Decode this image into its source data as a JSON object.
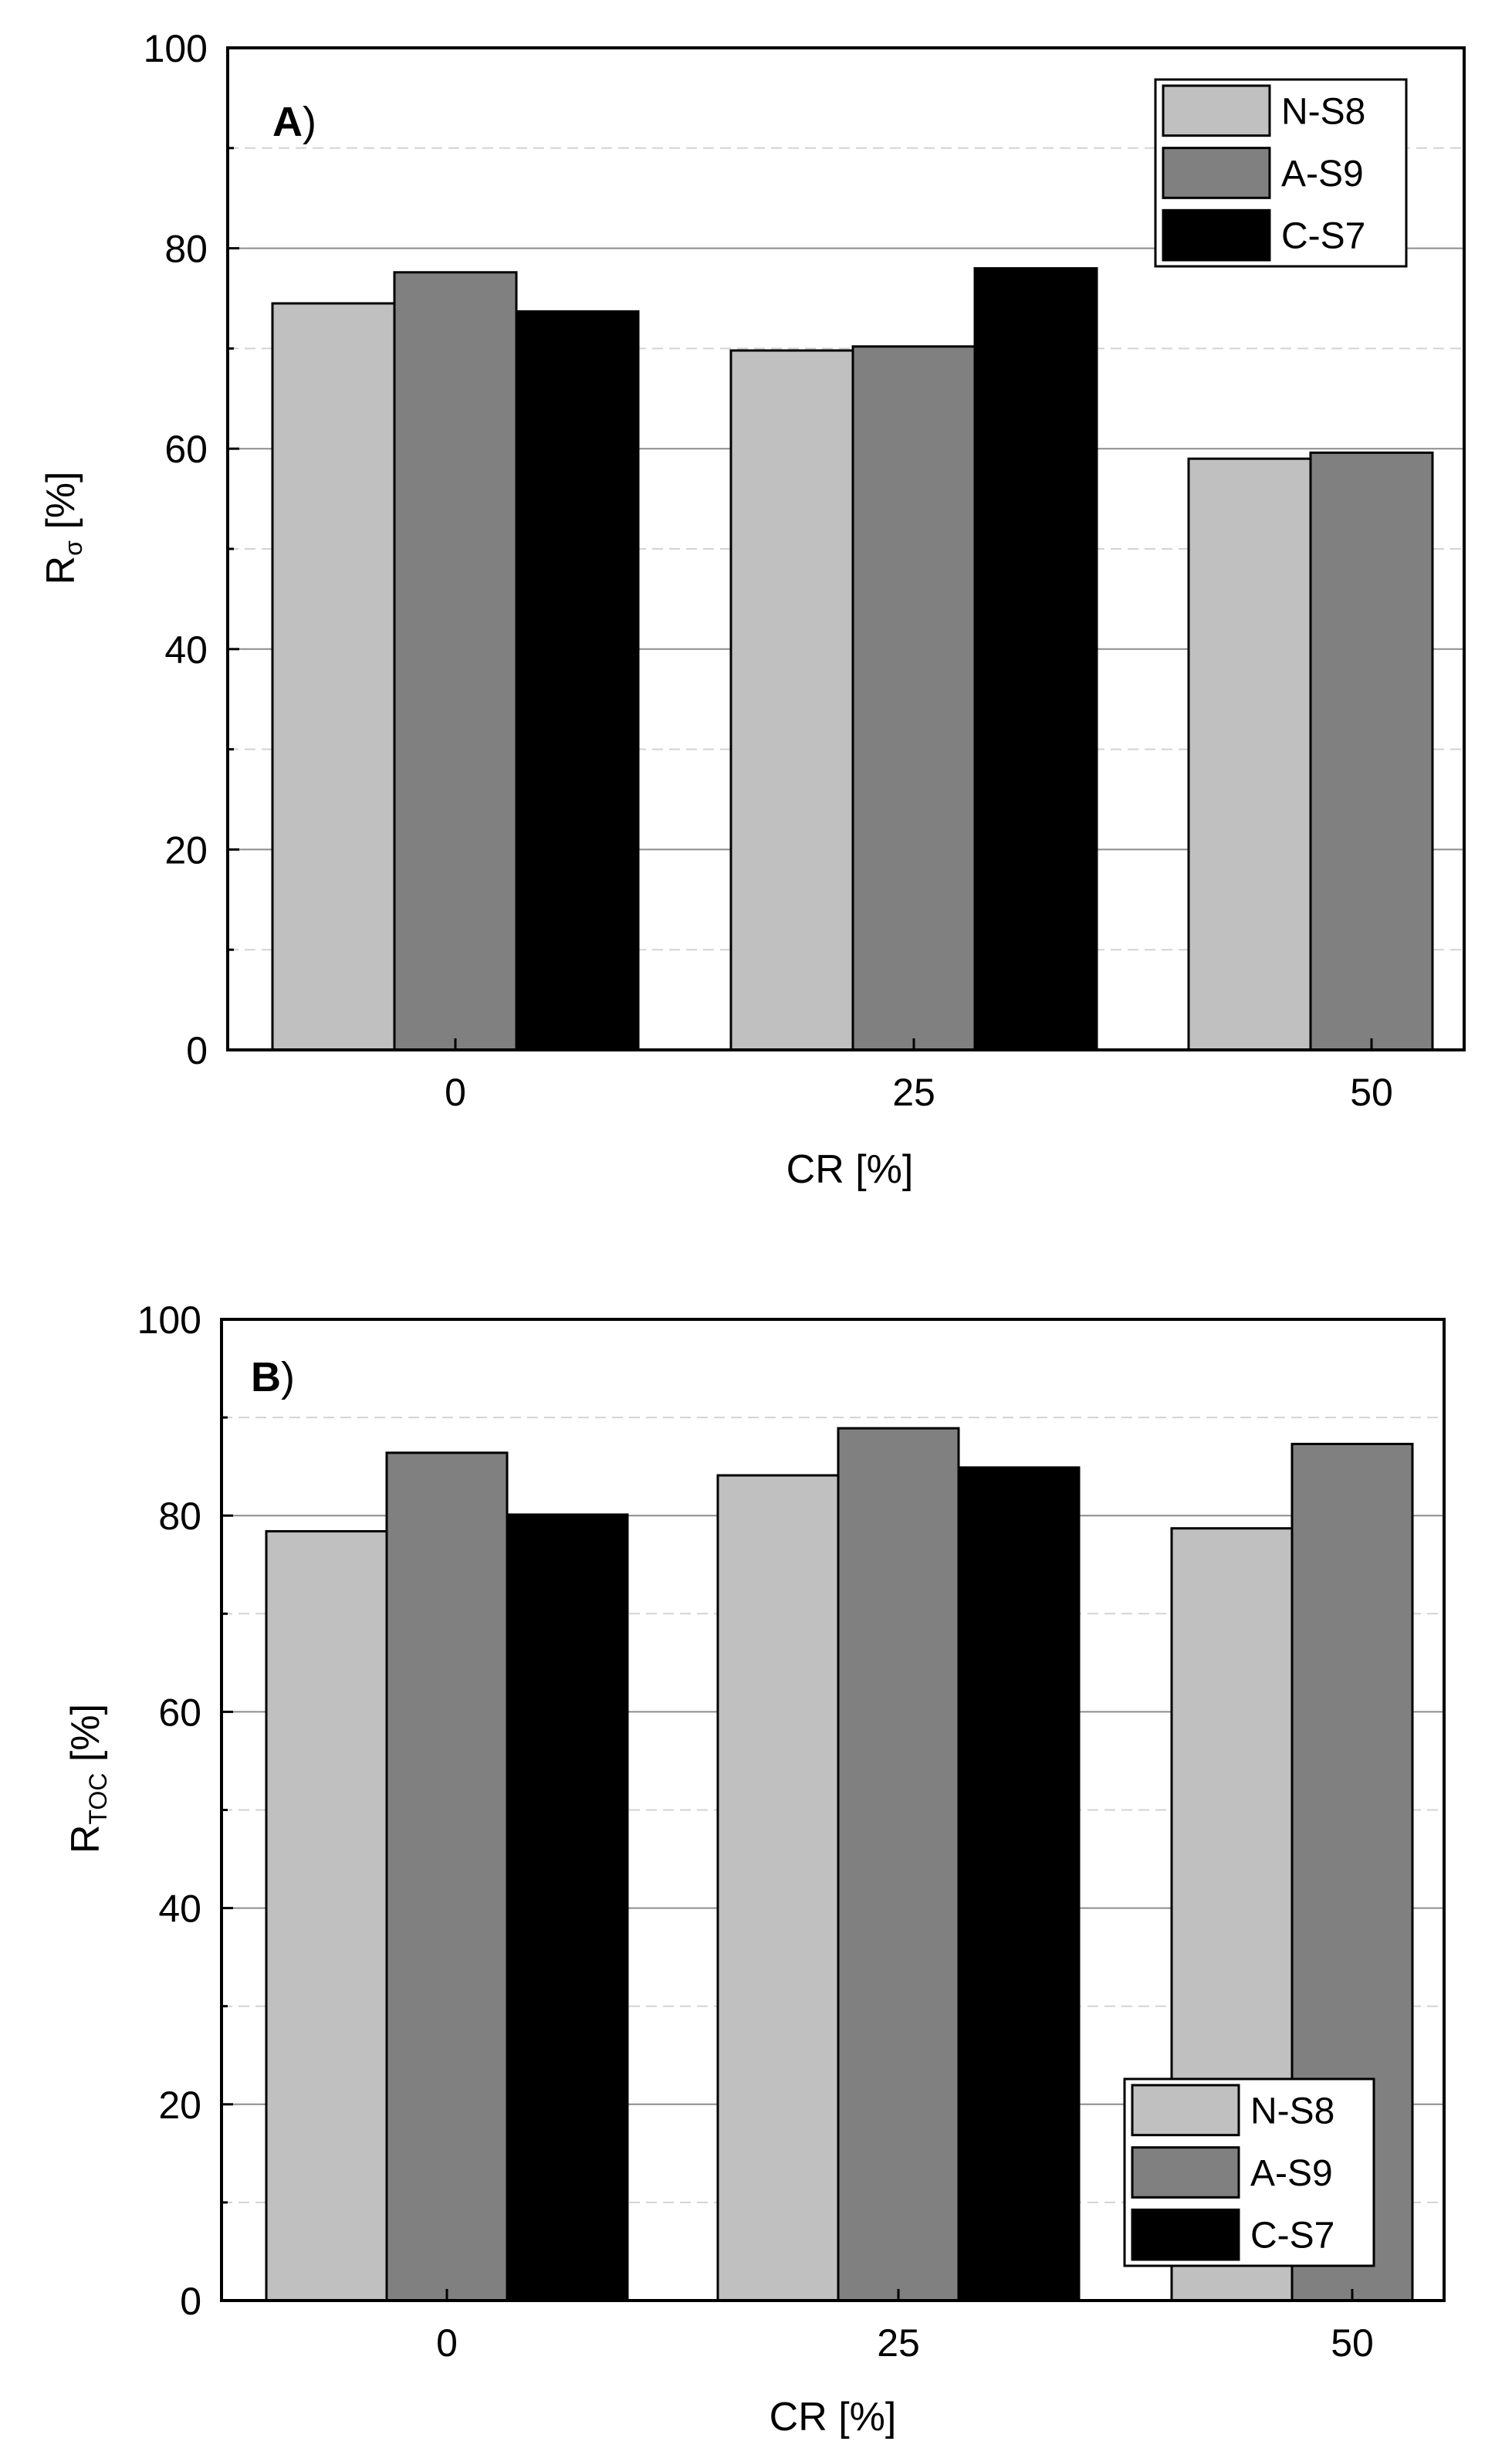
{
  "colors": {
    "N-S8": "#c0c0c0",
    "A-S9": "#808080",
    "C-S7": "#000000"
  },
  "chart_data": [
    {
      "type": "bar",
      "panel_label": "A",
      "panel_suffix": ")",
      "title": "",
      "xlabel": "CR [%]",
      "ylabel_main": "R",
      "ylabel_sub": "σ",
      "ylabel_tail": " [%]",
      "categories": [
        "0",
        "25",
        "50"
      ],
      "ylim": [
        0,
        100
      ],
      "yticks": [
        "0",
        "20",
        "40",
        "60",
        "80",
        "100"
      ],
      "legend_position": "top-right",
      "series": [
        {
          "name": "N-S8",
          "values": [
            74.5,
            69.8,
            59.0
          ]
        },
        {
          "name": "A-S9",
          "values": [
            77.6,
            70.2,
            59.6
          ]
        },
        {
          "name": "C-S7",
          "values": [
            73.7,
            78.0,
            null
          ]
        }
      ]
    },
    {
      "type": "bar",
      "panel_label": "B",
      "panel_suffix": ")",
      "title": "",
      "xlabel": "CR [%]",
      "ylabel_main": "R",
      "ylabel_sub": "TOC",
      "ylabel_tail": " [%]",
      "categories": [
        "0",
        "25",
        "50"
      ],
      "ylim": [
        0,
        100
      ],
      "yticks": [
        "0",
        "20",
        "40",
        "60",
        "80",
        "100"
      ],
      "legend_position": "bottom-right",
      "series": [
        {
          "name": "N-S8",
          "values": [
            78.4,
            84.1,
            78.7
          ]
        },
        {
          "name": "A-S9",
          "values": [
            86.4,
            88.9,
            87.3
          ]
        },
        {
          "name": "C-S7",
          "values": [
            80.1,
            84.9,
            null
          ]
        }
      ]
    }
  ]
}
